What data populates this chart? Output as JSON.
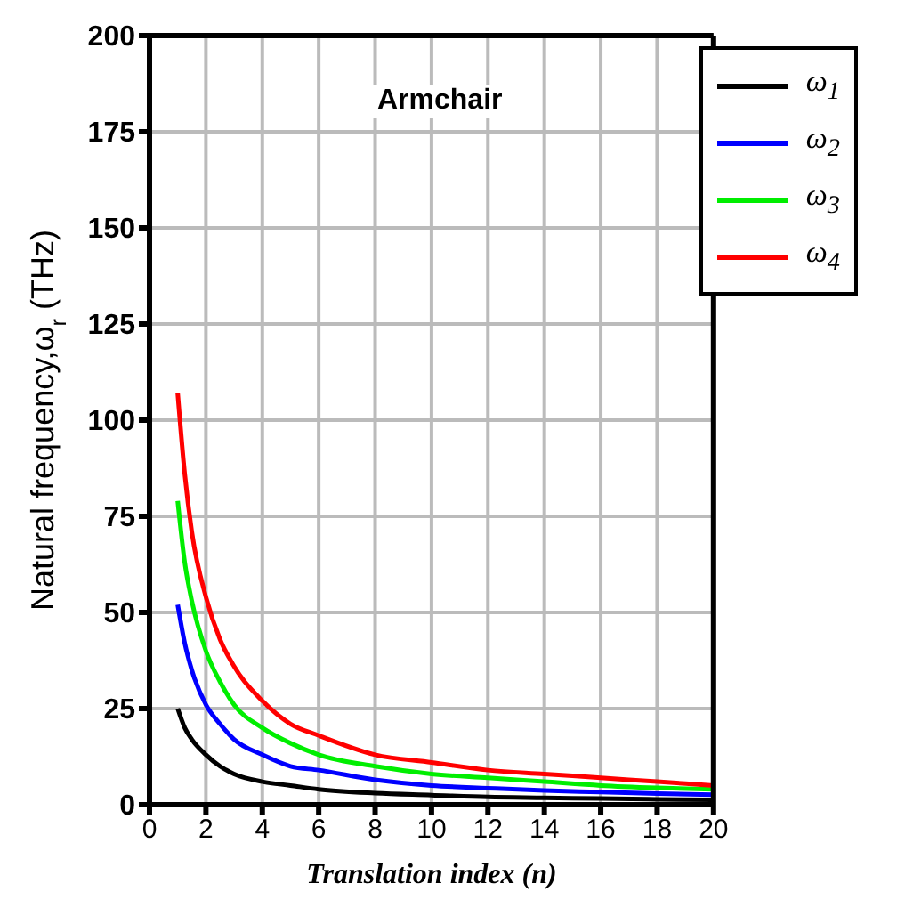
{
  "chart_data": {
    "type": "line",
    "xlabel": "Translation index (n)",
    "ylabel": "Natural frequency,ω$_{r}$ (THz)",
    "annotations": [
      "Armchair"
    ],
    "x": [
      1,
      1.25,
      1.5,
      2,
      2.5,
      3,
      4,
      5,
      6,
      8,
      10,
      12,
      14,
      16,
      18,
      20
    ],
    "series": [
      {
        "name": "ω$_{1}$",
        "color": "#000000",
        "values": [
          25,
          20,
          17,
          13,
          10,
          8,
          6,
          5,
          4,
          3,
          2.5,
          2,
          1.8,
          1.6,
          1.4,
          1.3
        ]
      },
      {
        "name": "ω$_{2}$",
        "color": "#0000ff",
        "values": [
          52,
          42,
          35,
          26,
          21,
          17,
          13,
          10,
          9,
          6.5,
          5,
          4.3,
          3.7,
          3.3,
          2.9,
          2.6
        ]
      },
      {
        "name": "ω$_{3}$",
        "color": "#00ee00",
        "values": [
          79,
          63,
          53,
          40,
          32,
          26,
          20,
          16,
          13,
          10,
          8,
          7,
          6,
          5,
          4.4,
          4
        ]
      },
      {
        "name": "ω$_{4}$",
        "color": "#ff0000",
        "values": [
          107,
          86,
          71,
          54,
          43,
          36,
          27,
          21,
          18,
          13,
          11,
          9,
          8,
          7,
          6,
          5
        ]
      }
    ],
    "xlim": [
      0,
      20
    ],
    "xticks": [
      0,
      2,
      4,
      6,
      8,
      10,
      12,
      14,
      16,
      18,
      20
    ],
    "ylim": [
      0,
      200
    ],
    "yticks": [
      0,
      25,
      50,
      75,
      100,
      125,
      150,
      175,
      200
    ],
    "grid": true,
    "legend": "top right",
    "marker": "none",
    "line_style": "solid"
  }
}
